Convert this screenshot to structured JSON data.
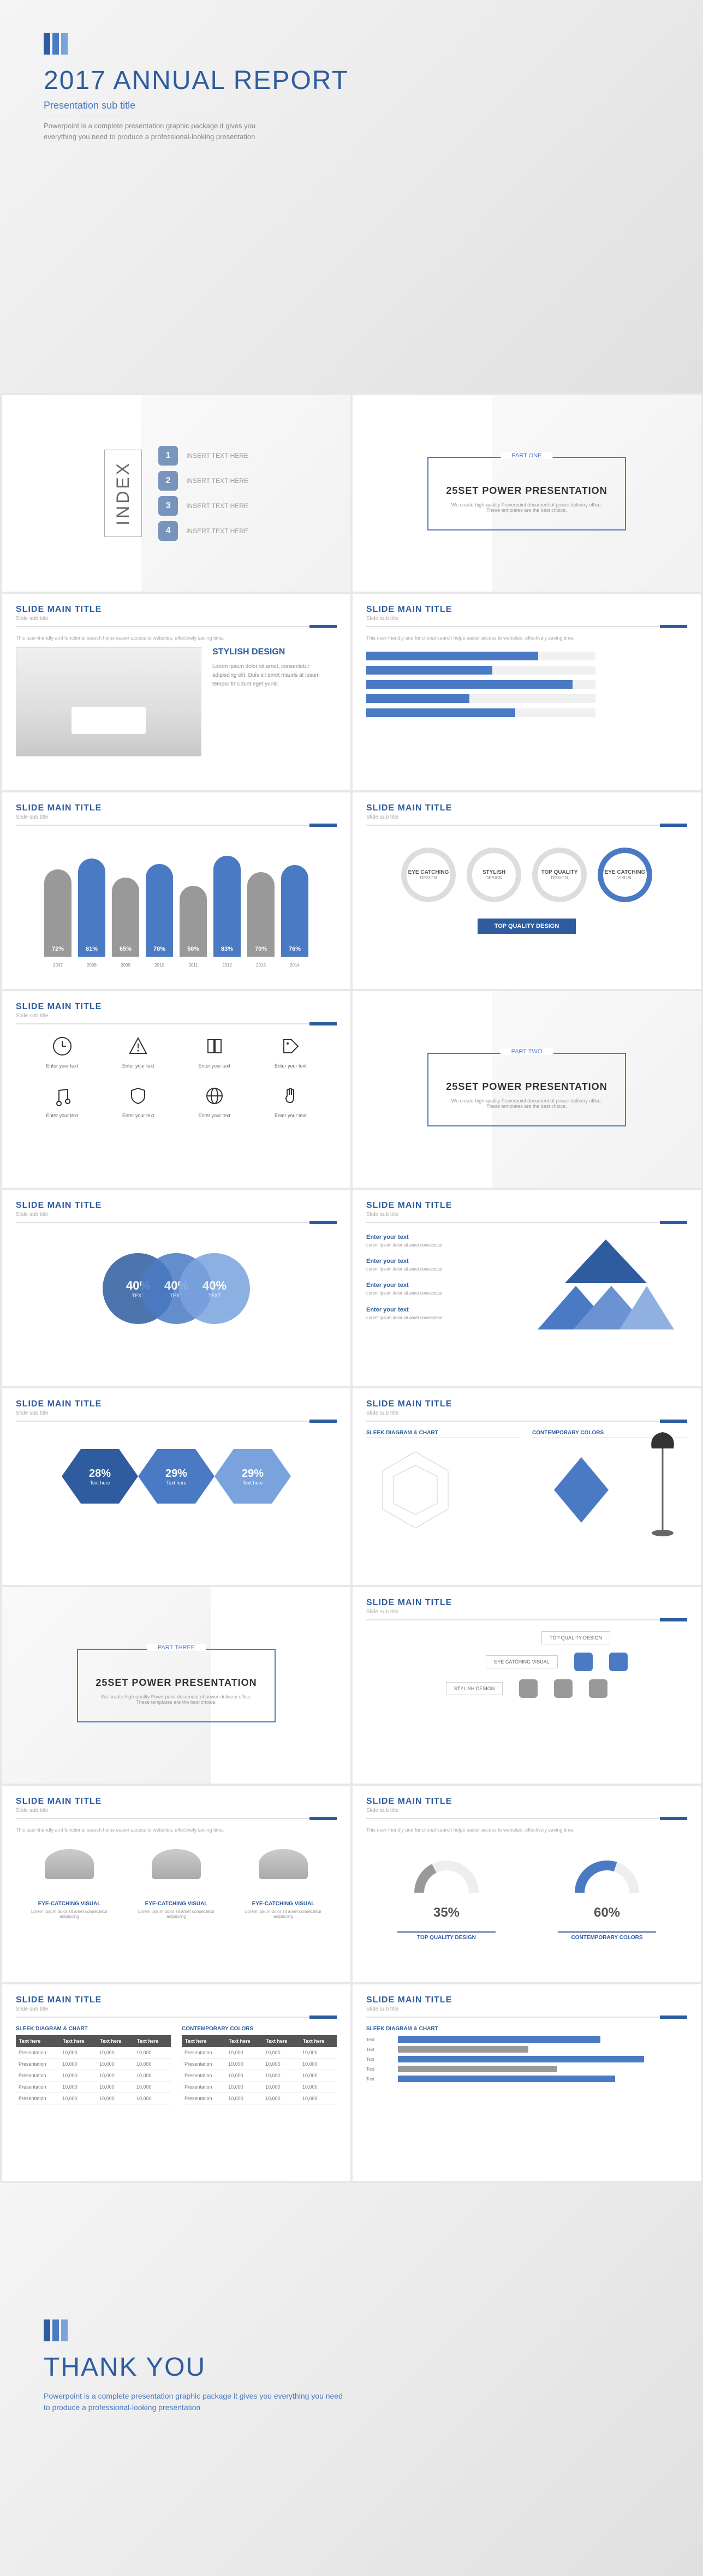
{
  "colors": {
    "primary": "#2e5c9e",
    "accent": "#4a7ac4",
    "light": "#7aa3de",
    "gray": "#999",
    "dark": "#555"
  },
  "hero": {
    "title": "2017 ANNUAL REPORT",
    "subtitle": "Presentation sub title",
    "desc": "Powerpoint is a complete presentation graphic package it gives you everything you need to produce a professional-looking presentation",
    "logo_colors": [
      "#2e5c9e",
      "#4a7ac4",
      "#7aa3de"
    ]
  },
  "index": {
    "label": "INDEX",
    "items": [
      {
        "n": "1",
        "t": "INSERT TEXT HERE"
      },
      {
        "n": "2",
        "t": "INSERT TEXT HERE"
      },
      {
        "n": "3",
        "t": "INSERT TEXT HERE"
      },
      {
        "n": "4",
        "t": "INSERT TEXT HERE"
      }
    ]
  },
  "sections": [
    {
      "part": "PART ONE",
      "title": "25SET POWER PRESENTATION",
      "desc": "We create high-quality Powerpoint document of power-delivery office. These templates are the best choice."
    },
    {
      "part": "PART TWO",
      "title": "25SET POWER PRESENTATION",
      "desc": "We create high-quality Powerpoint document of power-delivery office. These templates are the best choice."
    },
    {
      "part": "PART THREE",
      "title": "25SET POWER PRESENTATION",
      "desc": "We create high-quality Powerpoint document of power-delivery office. These templates are the best choice."
    }
  ],
  "slide_title": "SLIDE MAIN TITLE",
  "slide_sub": "Slide sub title",
  "body_txt": "This user-friendly and functional search helps easier access to websites, effectively saving time.",
  "stylish": {
    "heading": "STYLISH DESIGN",
    "text": "Lorem ipsum dolor sit amet, consectetur adipiscing elit. Duis sit amet mauris at ipsum tempor tincidunt eget yunis."
  },
  "hbars": {
    "values": [
      75,
      55,
      90,
      45,
      65
    ],
    "color": "#4a7ac4"
  },
  "vbars": {
    "items": [
      {
        "pct": "72%",
        "h": 160,
        "c": "#999",
        "y": "2007"
      },
      {
        "pct": "81%",
        "h": 180,
        "c": "#4a7ac4",
        "y": "2008"
      },
      {
        "pct": "65%",
        "h": 145,
        "c": "#999",
        "y": "2009"
      },
      {
        "pct": "78%",
        "h": 170,
        "c": "#4a7ac4",
        "y": "2010"
      },
      {
        "pct": "58%",
        "h": 130,
        "c": "#999",
        "y": "2011"
      },
      {
        "pct": "83%",
        "h": 185,
        "c": "#4a7ac4",
        "y": "2012"
      },
      {
        "pct": "70%",
        "h": 155,
        "c": "#999",
        "y": "2013"
      },
      {
        "pct": "76%",
        "h": 168,
        "c": "#4a7ac4",
        "y": "2014"
      }
    ]
  },
  "circles": [
    {
      "t": "EYE CATCHING",
      "s": "DESIGN",
      "active": false
    },
    {
      "t": "STYLISH",
      "s": "DESIGN",
      "active": false
    },
    {
      "t": "TOP QUALITY",
      "s": "DESIGN",
      "active": false
    },
    {
      "t": "EYE CATCHING",
      "s": "VISUAL",
      "active": true
    }
  ],
  "tq_label": "TOP QUALITY DESIGN",
  "icons": {
    "label": "Enter your text",
    "items": [
      "clock",
      "warning",
      "book",
      "tag",
      "music",
      "shield",
      "globe",
      "hand"
    ]
  },
  "venn": [
    {
      "pct": "40%",
      "t": "TEXT",
      "c": "#2e5c9e",
      "x": -70
    },
    {
      "pct": "40%",
      "t": "TEXT",
      "c": "#4a7ac4",
      "x": 0
    },
    {
      "pct": "40%",
      "t": "TEXT",
      "c": "#7aa3de",
      "x": 70
    }
  ],
  "tri_items": [
    {
      "h": "Enter your text",
      "p": "Lorem ipsum dolor sit amet consectetur"
    },
    {
      "h": "Enter your text",
      "p": "Lorem ipsum dolor sit amet consectetur"
    },
    {
      "h": "Enter your text",
      "p": "Lorem ipsum dolor sit amet consectetur"
    },
    {
      "h": "Enter your text",
      "p": "Lorem ipsum dolor sit amet consectetur"
    }
  ],
  "tri_colors": [
    "#2e5c9e",
    "#4a7ac4",
    "#6b93d4",
    "#8fb0e0"
  ],
  "hex": [
    {
      "pct": "28%",
      "t": "Text here",
      "c": "#2e5c9e"
    },
    {
      "pct": "29%",
      "t": "Text here",
      "c": "#4a7ac4"
    },
    {
      "pct": "29%",
      "t": "Text here",
      "c": "#7aa3de"
    }
  ],
  "radar": {
    "h1": "SLEEK DIAGRAM & CHART",
    "h2": "CONTEMPORARY COLORS"
  },
  "lamps": [
    {
      "t": "EYE-CATCHING VISUAL",
      "p": "Lorem ipsum dolor sit amet consectetur adipiscing"
    },
    {
      "t": "EYE-CATCHING VISUAL",
      "p": "Lorem ipsum dolor sit amet consectetur adipiscing"
    },
    {
      "t": "EYE-CATCHING VISUAL",
      "p": "Lorem ipsum dolor sit amet consectetur adipiscing"
    }
  ],
  "flow": {
    "top": "TOP QUALITY DESIGN",
    "mid": "EYE CATCHING VISUAL",
    "left": "STYLISH DESIGN"
  },
  "donuts": [
    {
      "pct": "35%",
      "c": "#999"
    },
    {
      "pct": "60%",
      "c": "#4a7ac4"
    }
  ],
  "donut_lbls": [
    "TOP QUALITY DESIGN",
    "CONTEMPORARY COLORS"
  ],
  "tables": {
    "h1": "SLEEK DIAGRAM & CHART",
    "h2": "CONTEMPORARY COLORS",
    "cols": [
      "Text here",
      "Text here",
      "Text here",
      "Text here"
    ],
    "rows": [
      [
        "Presentation",
        "10,000",
        "10,000",
        "10,000"
      ],
      [
        "Presentation",
        "10,000",
        "10,000",
        "10,000"
      ],
      [
        "Presentation",
        "10,000",
        "10,000",
        "10,000"
      ],
      [
        "Presentation",
        "10,000",
        "10,000",
        "10,000"
      ],
      [
        "Presentation",
        "10,000",
        "10,000",
        "10,000"
      ]
    ]
  },
  "barchart": {
    "h": "SLEEK DIAGRAM & CHART",
    "rows": [
      {
        "l": "Text",
        "v": 70,
        "c": "#4a7ac4"
      },
      {
        "l": "Text",
        "v": 45,
        "c": "#999"
      },
      {
        "l": "Text",
        "v": 85,
        "c": "#4a7ac4"
      },
      {
        "l": "Text",
        "v": 55,
        "c": "#999"
      },
      {
        "l": "Text",
        "v": 75,
        "c": "#4a7ac4"
      }
    ]
  },
  "thanks": {
    "title": "THANK YOU",
    "desc": "Powerpoint is a complete presentation graphic package it gives you everything you need to produce a professional-looking presentation"
  }
}
